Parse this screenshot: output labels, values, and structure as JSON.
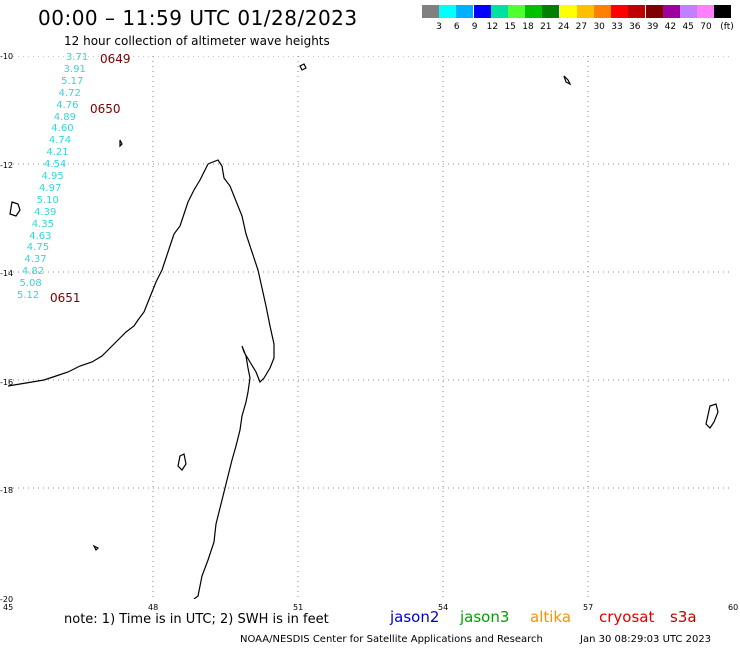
{
  "title": "00:00 – 11:59 UTC 01/28/2023",
  "subtitle": "12 hour collection of altimeter wave heights",
  "legend": {
    "unit": "(ft)",
    "colors": [
      "#808080",
      "#00ffff",
      "#00b0ff",
      "#0000ff",
      "#00e0a0",
      "#50ff30",
      "#00c000",
      "#008000",
      "#ffff00",
      "#ffc000",
      "#ff8000",
      "#ff0000",
      "#c00000",
      "#800000",
      "#a000a0",
      "#c080ff",
      "#ff80ff",
      "#000000"
    ],
    "labels": [
      "3",
      "6",
      "9",
      "12",
      "15",
      "18",
      "21",
      "24",
      "27",
      "30",
      "33",
      "36",
      "39",
      "42",
      "45",
      "70"
    ]
  },
  "map": {
    "lat_labels": [
      "-10",
      "-12",
      "-14",
      "-16",
      "-18",
      "-20"
    ],
    "lon_labels": [
      "45",
      "48",
      "51",
      "54",
      "57",
      "60"
    ]
  },
  "wave_heights": [
    "3.71",
    "3.91",
    "5.17",
    "4.72",
    "4.76",
    "4.89",
    "4.60",
    "4.74",
    "4.21",
    "4.54",
    "4.95",
    "4.97",
    "5.10",
    "4.39",
    "4.35",
    "4.63",
    "4.75",
    "4.37",
    "4.82",
    "5.08",
    "5.12"
  ],
  "pass_times": [
    "0649",
    "0650",
    "0651"
  ],
  "note": "note:  1) Time is in UTC;  2) SWH is in feet",
  "satellites": [
    {
      "name": "jason2",
      "color": "#0000d0"
    },
    {
      "name": "jason3",
      "color": "#00a000"
    },
    {
      "name": "altika",
      "color": "#ff9000"
    },
    {
      "name": "cryosat",
      "color": "#e00000"
    },
    {
      "name": "s3a",
      "color": "#c00000"
    }
  ],
  "footer": {
    "org": "NOAA/NESDIS Center for Satellite Applications and Research",
    "timestamp": "Jan 30 08:29:03 UTC 2023"
  }
}
